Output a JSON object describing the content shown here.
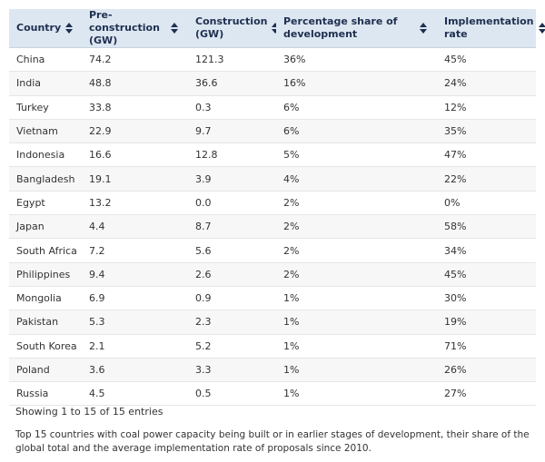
{
  "table": {
    "headers": [
      {
        "label": "Country"
      },
      {
        "label": "Pre-construction (GW)"
      },
      {
        "label": "Construction (GW)"
      },
      {
        "label": "Percentage share of development"
      },
      {
        "label": "Implementation rate"
      }
    ],
    "rows": [
      [
        "China",
        "74.2",
        "121.3",
        "36%",
        "45%"
      ],
      [
        "India",
        "48.8",
        "36.6",
        "16%",
        "24%"
      ],
      [
        "Turkey",
        "33.8",
        "0.3",
        "6%",
        "12%"
      ],
      [
        "Vietnam",
        "22.9",
        "9.7",
        "6%",
        "35%"
      ],
      [
        "Indonesia",
        "16.6",
        "12.8",
        "5%",
        "47%"
      ],
      [
        "Bangladesh",
        "19.1",
        "3.9",
        "4%",
        "22%"
      ],
      [
        "Egypt",
        "13.2",
        "0.0",
        "2%",
        "0%"
      ],
      [
        "Japan",
        "4.4",
        "8.7",
        "2%",
        "58%"
      ],
      [
        "South Africa",
        "7.2",
        "5.6",
        "2%",
        "34%"
      ],
      [
        "Philippines",
        "9.4",
        "2.6",
        "2%",
        "45%"
      ],
      [
        "Mongolia",
        "6.9",
        "0.9",
        "1%",
        "30%"
      ],
      [
        "Pakistan",
        "5.3",
        "2.3",
        "1%",
        "19%"
      ],
      [
        "South Korea",
        "2.1",
        "5.2",
        "1%",
        "71%"
      ],
      [
        "Poland",
        "3.6",
        "3.3",
        "1%",
        "26%"
      ],
      [
        "Russia",
        "4.5",
        "0.5",
        "1%",
        "27%"
      ]
    ]
  },
  "entries_info": "Showing 1 to 15 of 15 entries",
  "caption": "Top 15 countries with coal power capacity being built or in earlier stages of development, their share of the global total and the average implementation rate of proposals since 2010.",
  "colors": {
    "header_bg": "#dde7f2",
    "header_text": "#1f2f4f",
    "stripe": "#f7f7f7"
  }
}
